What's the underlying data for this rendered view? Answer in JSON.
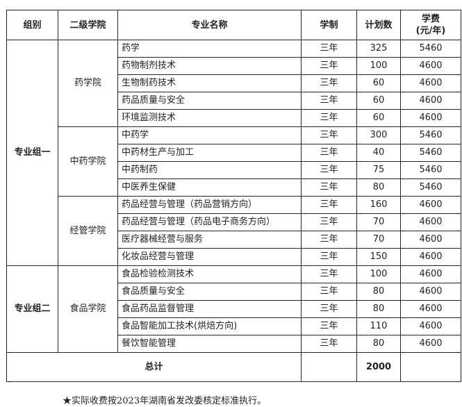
{
  "headers": {
    "group": "组别",
    "college": "二级学院",
    "major": "专业名称",
    "duration": "学制",
    "plan": "计划数",
    "fee_line1": "学费",
    "fee_line2": "(元/年)"
  },
  "groups": [
    {
      "name": "专业组一",
      "colleges": [
        {
          "name": "药学院",
          "majors": [
            {
              "name": "药学",
              "duration": "三年",
              "plan": "325",
              "fee": "5460"
            },
            {
              "name": "药物制剂技术",
              "duration": "三年",
              "plan": "100",
              "fee": "4600"
            },
            {
              "name": "生物制药技术",
              "duration": "三年",
              "plan": "60",
              "fee": "4600"
            },
            {
              "name": "药品质量与安全",
              "duration": "三年",
              "plan": "60",
              "fee": "4600"
            },
            {
              "name": "环境监测技术",
              "duration": "三年",
              "plan": "60",
              "fee": "4600"
            }
          ]
        },
        {
          "name": "中药学院",
          "majors": [
            {
              "name": "中药学",
              "duration": "三年",
              "plan": "300",
              "fee": "5460"
            },
            {
              "name": "中药材生产与加工",
              "duration": "三年",
              "plan": "40",
              "fee": "5460"
            },
            {
              "name": "中药制药",
              "duration": "三年",
              "plan": "75",
              "fee": "5460"
            },
            {
              "name": "中医养生保健",
              "duration": "三年",
              "plan": "80",
              "fee": "5460"
            }
          ]
        },
        {
          "name": "经管学院",
          "majors": [
            {
              "name": "药品经营与管理（药品营销方向）",
              "duration": "三年",
              "plan": "160",
              "fee": "4600"
            },
            {
              "name": "药品经营与管理（药品电子商务方向）",
              "duration": "三年",
              "plan": "70",
              "fee": "4600"
            },
            {
              "name": "医疗器械经营与服务",
              "duration": "三年",
              "plan": "70",
              "fee": "4600"
            },
            {
              "name": "化妆品经营与管理",
              "duration": "三年",
              "plan": "150",
              "fee": "4600"
            }
          ]
        }
      ]
    },
    {
      "name": "专业组二",
      "colleges": [
        {
          "name": "食品学院",
          "majors": [
            {
              "name": "食品检验检测技术",
              "duration": "三年",
              "plan": "100",
              "fee": "4600"
            },
            {
              "name": "食品质量与安全",
              "duration": "三年",
              "plan": "80",
              "fee": "4600"
            },
            {
              "name": "食品药品监督管理",
              "duration": "三年",
              "plan": "80",
              "fee": "4600"
            },
            {
              "name": "食品智能加工技术(烘焙方向)",
              "duration": "三年",
              "plan": "110",
              "fee": "4600"
            },
            {
              "name": "餐饮智能管理",
              "duration": "三年",
              "plan": "80",
              "fee": "4600"
            }
          ]
        }
      ]
    }
  ],
  "total": {
    "label": "总计",
    "plan": "2000"
  },
  "note": "★实际收费按2023年湖南省发改委核定标准执行。"
}
